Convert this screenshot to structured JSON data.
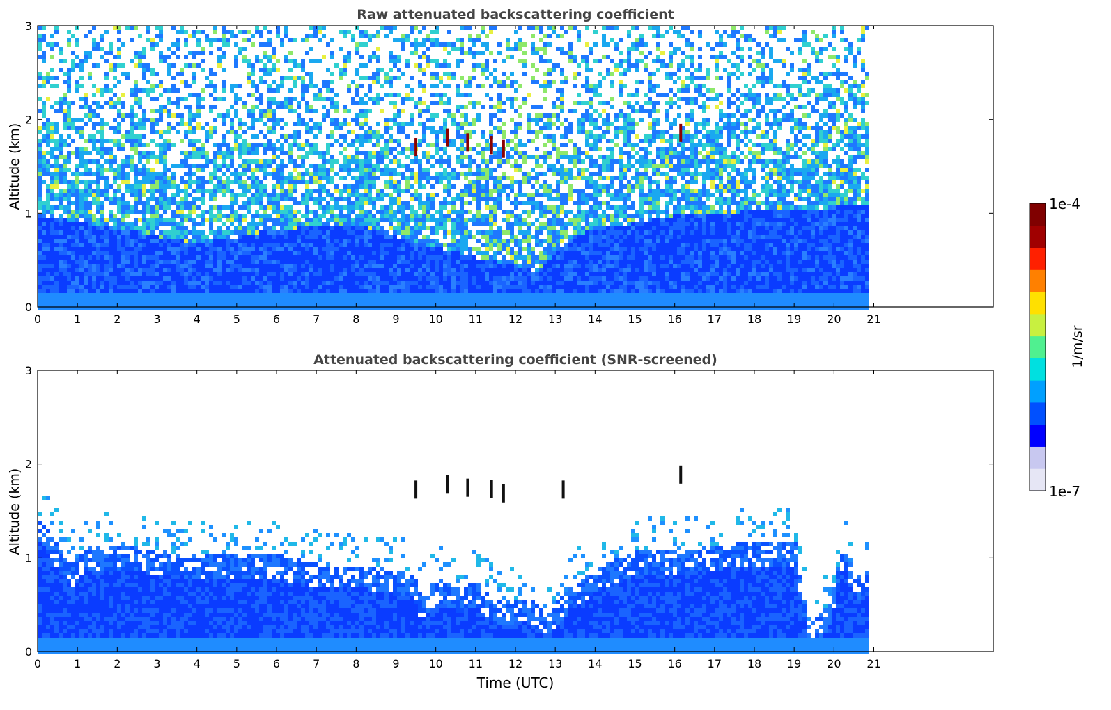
{
  "chart_data": [
    {
      "type": "heatmap",
      "title": "Raw attenuated backscattering coefficient",
      "xlabel": "",
      "ylabel": "Altitude (km)",
      "xlim": [
        0,
        24
      ],
      "ylim": [
        0,
        3
      ],
      "x_ticks": [
        "0",
        "1",
        "2",
        "3",
        "4",
        "5",
        "6",
        "7",
        "8",
        "9",
        "10",
        "11",
        "12",
        "13",
        "14",
        "15",
        "16",
        "17",
        "18",
        "19",
        "20",
        "21"
      ],
      "y_ticks": [
        "0",
        "1",
        "2",
        "3"
      ],
      "data_end_time": 20.8,
      "boundary_layer_top_km": [
        [
          0,
          1.0
        ],
        [
          2,
          0.85
        ],
        [
          4,
          0.7
        ],
        [
          6,
          0.85
        ],
        [
          8,
          0.9
        ],
        [
          9.5,
          0.7
        ],
        [
          11,
          0.55
        ],
        [
          12.5,
          0.4
        ],
        [
          13.5,
          0.8
        ],
        [
          16,
          1.0
        ],
        [
          18,
          1.05
        ],
        [
          20.8,
          1.1
        ]
      ],
      "cloud_features": [
        {
          "time": 9.5,
          "altitude_km": 1.7
        },
        {
          "time": 10.3,
          "altitude_km": 1.8
        },
        {
          "time": 10.8,
          "altitude_km": 1.75
        },
        {
          "time": 11.4,
          "altitude_km": 1.72
        },
        {
          "time": 11.7,
          "altitude_km": 1.68
        },
        {
          "time": 16.15,
          "altitude_km": 1.85
        }
      ]
    },
    {
      "type": "heatmap",
      "title": "Attenuated backscattering coefficient (SNR-screened)",
      "xlabel": "Time (UTC)",
      "ylabel": "Altitude (km)",
      "xlim": [
        0,
        24
      ],
      "ylim": [
        0,
        3
      ],
      "x_ticks": [
        "0",
        "1",
        "2",
        "3",
        "4",
        "5",
        "6",
        "7",
        "8",
        "9",
        "10",
        "11",
        "12",
        "13",
        "14",
        "15",
        "16",
        "17",
        "18",
        "19",
        "20",
        "21"
      ],
      "y_ticks": [
        "0",
        "1",
        "2",
        "3"
      ],
      "data_end_time": 20.8,
      "screened_layer_top_km": [
        [
          0,
          1.45
        ],
        [
          0.8,
          0.95
        ],
        [
          1.2,
          1.15
        ],
        [
          2,
          1.15
        ],
        [
          3,
          1.1
        ],
        [
          4,
          1.05
        ],
        [
          5,
          1.05
        ],
        [
          6,
          1.05
        ],
        [
          7,
          0.95
        ],
        [
          8,
          0.95
        ],
        [
          9.4,
          0.85
        ],
        [
          9.6,
          0.6
        ],
        [
          10,
          0.8
        ],
        [
          10.5,
          0.7
        ],
        [
          11,
          0.75
        ],
        [
          11.5,
          0.55
        ],
        [
          12.2,
          0.6
        ],
        [
          12.8,
          0.45
        ],
        [
          13.4,
          0.75
        ],
        [
          14,
          0.9
        ],
        [
          15,
          1.1
        ],
        [
          16,
          1.1
        ],
        [
          17,
          1.15
        ],
        [
          18,
          1.2
        ],
        [
          19,
          1.2
        ],
        [
          19.3,
          0.32
        ],
        [
          19.8,
          0.5
        ],
        [
          20.2,
          1.2
        ],
        [
          20.5,
          0.8
        ],
        [
          20.8,
          0.9
        ]
      ],
      "cloud_features": [
        {
          "time": 9.5,
          "altitude_km": 1.72
        },
        {
          "time": 10.3,
          "altitude_km": 1.78
        },
        {
          "time": 10.8,
          "altitude_km": 1.74
        },
        {
          "time": 11.4,
          "altitude_km": 1.73
        },
        {
          "time": 11.7,
          "altitude_km": 1.68
        },
        {
          "time": 13.2,
          "altitude_km": 1.72
        },
        {
          "time": 16.15,
          "altitude_km": 1.88
        }
      ]
    }
  ],
  "colorbar": {
    "label": "1/m/sr",
    "max_label": "1e-4",
    "min_label": "1e-7",
    "scale": "log",
    "colormap": [
      "#e6e6f5",
      "#c8c8f0",
      "#0000ff",
      "#0050ff",
      "#00a0ff",
      "#00e0e0",
      "#50f090",
      "#c8f040",
      "#ffe000",
      "#ff8000",
      "#ff2000",
      "#a00000",
      "#800000"
    ]
  }
}
